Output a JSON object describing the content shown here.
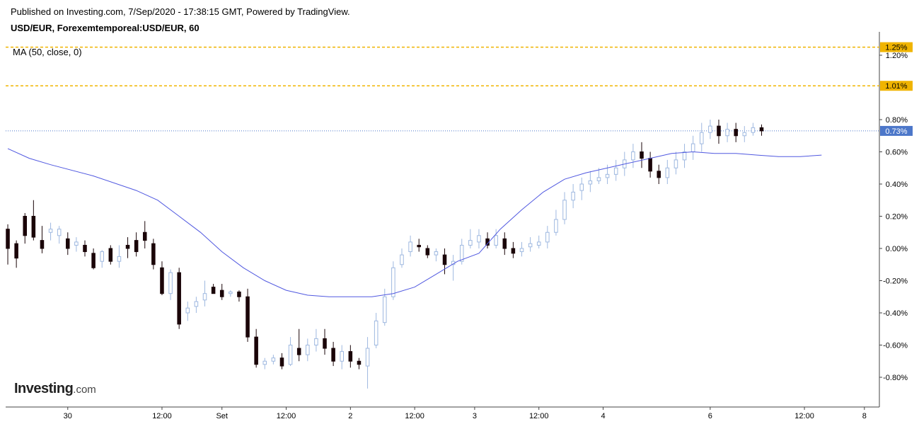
{
  "header": {
    "published": "Published on Investing.com, 7/Sep/2020 - 17:38:15 GMT, Powered by TradingView.",
    "symbol": "USD/EUR, Forexemtemporeal:USD/EUR, 60",
    "indicator": "MA (50, close, 0)"
  },
  "logo": {
    "brand": "Investing",
    "suffix": ".com"
  },
  "colors": {
    "up_fill": "#ffffff",
    "up_stroke": "#9eb8e0",
    "down_fill": "#1a0508",
    "ma_line": "#5058e0",
    "dashed_line": "#f0b400",
    "current_price": "#4c77c9",
    "axis": "#444444",
    "text": "#000000"
  },
  "chart_data": {
    "type": "candlestick",
    "ylabel": "",
    "ylim": [
      -0.9,
      1.3
    ],
    "y_ticks": [
      {
        "value": 1.2,
        "label": "1.20%"
      },
      {
        "value": 0.8,
        "label": "0.80%"
      },
      {
        "value": 0.6,
        "label": "0.60%"
      },
      {
        "value": 0.4,
        "label": "0.40%"
      },
      {
        "value": 0.2,
        "label": "0.20%"
      },
      {
        "value": 0.0,
        "label": "0.00%"
      },
      {
        "value": -0.2,
        "label": "-0.20%"
      },
      {
        "value": -0.4,
        "label": "-0.40%"
      },
      {
        "value": -0.6,
        "label": "-0.60%"
      },
      {
        "value": -0.8,
        "label": "-0.80%"
      }
    ],
    "x_ticks": [
      {
        "index": 14,
        "label": "30"
      },
      {
        "index": 36,
        "label": "12:00"
      },
      {
        "index": 50,
        "label": "Set"
      },
      {
        "index": 65,
        "label": "12:00"
      },
      {
        "index": 80,
        "label": "2"
      },
      {
        "index": 95,
        "label": "12:00"
      },
      {
        "index": 109,
        "label": "3"
      },
      {
        "index": 124,
        "label": "12:00"
      },
      {
        "index": 139,
        "label": "4"
      },
      {
        "index": 164,
        "label": "6"
      },
      {
        "index": 186,
        "label": "12:00"
      },
      {
        "index": 200,
        "label": "8"
      }
    ],
    "x_count": 204,
    "horizontal_lines": [
      {
        "value": 1.25,
        "label": "1.25%",
        "style": "dashed"
      },
      {
        "value": 1.01,
        "label": "1.01%",
        "style": "dashed"
      },
      {
        "value": 0.73,
        "label": "0.73%",
        "style": "dotted-current"
      }
    ],
    "ma_series": {
      "name": "MA (50, close, 0)",
      "points": [
        [
          0,
          0.62
        ],
        [
          5,
          0.56
        ],
        [
          10,
          0.52
        ],
        [
          20,
          0.45
        ],
        [
          30,
          0.36
        ],
        [
          35,
          0.3
        ],
        [
          40,
          0.2
        ],
        [
          45,
          0.1
        ],
        [
          50,
          -0.02
        ],
        [
          55,
          -0.12
        ],
        [
          60,
          -0.2
        ],
        [
          65,
          -0.26
        ],
        [
          70,
          -0.29
        ],
        [
          75,
          -0.3
        ],
        [
          80,
          -0.3
        ],
        [
          85,
          -0.3
        ],
        [
          90,
          -0.28
        ],
        [
          95,
          -0.24
        ],
        [
          100,
          -0.16
        ],
        [
          105,
          -0.08
        ],
        [
          110,
          -0.03
        ],
        [
          115,
          0.12
        ],
        [
          120,
          0.24
        ],
        [
          125,
          0.35
        ],
        [
          130,
          0.43
        ],
        [
          135,
          0.47
        ],
        [
          140,
          0.5
        ],
        [
          145,
          0.53
        ],
        [
          150,
          0.56
        ],
        [
          155,
          0.59
        ],
        [
          160,
          0.6
        ],
        [
          165,
          0.59
        ],
        [
          170,
          0.59
        ],
        [
          175,
          0.58
        ],
        [
          180,
          0.57
        ],
        [
          185,
          0.57
        ],
        [
          190,
          0.58
        ]
      ]
    },
    "candles": [
      [
        0,
        0.12,
        0.0,
        0.15,
        -0.1
      ],
      [
        2,
        0.03,
        -0.06,
        0.05,
        -0.12
      ],
      [
        4,
        0.2,
        0.08,
        0.22,
        0.03
      ],
      [
        6,
        0.2,
        0.07,
        0.3,
        0.05
      ],
      [
        8,
        0.05,
        0.0,
        0.14,
        -0.03
      ],
      [
        10,
        0.1,
        0.12,
        0.16,
        0.05
      ],
      [
        12,
        0.08,
        0.12,
        0.14,
        0.03
      ],
      [
        14,
        0.06,
        0.0,
        0.1,
        -0.04
      ],
      [
        16,
        0.02,
        0.04,
        0.07,
        -0.02
      ],
      [
        18,
        0.02,
        -0.02,
        0.05,
        -0.05
      ],
      [
        20,
        -0.03,
        -0.12,
        0.0,
        -0.13
      ],
      [
        22,
        -0.08,
        -0.02,
        -0.01,
        -0.12
      ],
      [
        24,
        0.0,
        -0.08,
        0.02,
        -0.1
      ],
      [
        26,
        -0.08,
        -0.05,
        0.02,
        -0.12
      ],
      [
        28,
        0.02,
        0.0,
        0.07,
        -0.06
      ],
      [
        30,
        0.05,
        -0.02,
        0.1,
        -0.05
      ],
      [
        32,
        0.1,
        0.05,
        0.17,
        0.0
      ],
      [
        34,
        0.03,
        -0.1,
        0.06,
        -0.13
      ],
      [
        36,
        -0.12,
        -0.28,
        -0.08,
        -0.29
      ],
      [
        38,
        -0.28,
        -0.15,
        -0.13,
        -0.32
      ],
      [
        40,
        -0.15,
        -0.47,
        -0.12,
        -0.5
      ],
      [
        42,
        -0.4,
        -0.37,
        -0.33,
        -0.45
      ],
      [
        44,
        -0.36,
        -0.33,
        -0.3,
        -0.4
      ],
      [
        46,
        -0.32,
        -0.28,
        -0.2,
        -0.36
      ],
      [
        48,
        -0.24,
        -0.28,
        -0.22,
        -0.28
      ],
      [
        50,
        -0.26,
        -0.3,
        -0.22,
        -0.32
      ],
      [
        52,
        -0.28,
        -0.27,
        -0.26,
        -0.3
      ],
      [
        54,
        -0.27,
        -0.3,
        -0.26,
        -0.33
      ],
      [
        56,
        -0.3,
        -0.55,
        -0.25,
        -0.58
      ],
      [
        58,
        -0.55,
        -0.72,
        -0.5,
        -0.74
      ],
      [
        60,
        -0.72,
        -0.7,
        -0.68,
        -0.75
      ],
      [
        62,
        -0.7,
        -0.68,
        -0.66,
        -0.72
      ],
      [
        64,
        -0.68,
        -0.73,
        -0.65,
        -0.75
      ],
      [
        66,
        -0.72,
        -0.6,
        -0.55,
        -0.73
      ],
      [
        68,
        -0.62,
        -0.66,
        -0.5,
        -0.7
      ],
      [
        70,
        -0.66,
        -0.6,
        -0.56,
        -0.7
      ],
      [
        72,
        -0.6,
        -0.56,
        -0.5,
        -0.64
      ],
      [
        74,
        -0.56,
        -0.62,
        -0.5,
        -0.66
      ],
      [
        76,
        -0.62,
        -0.7,
        -0.58,
        -0.73
      ],
      [
        78,
        -0.7,
        -0.64,
        -0.6,
        -0.75
      ],
      [
        80,
        -0.64,
        -0.7,
        -0.6,
        -0.74
      ],
      [
        82,
        -0.7,
        -0.72,
        -0.68,
        -0.75
      ],
      [
        84,
        -0.73,
        -0.62,
        -0.55,
        -0.87
      ],
      [
        86,
        -0.6,
        -0.45,
        -0.4,
        -0.62
      ],
      [
        88,
        -0.46,
        -0.3,
        -0.25,
        -0.48
      ],
      [
        90,
        -0.3,
        -0.12,
        -0.08,
        -0.32
      ],
      [
        92,
        -0.1,
        -0.04,
        0.0,
        -0.12
      ],
      [
        94,
        -0.02,
        0.04,
        0.08,
        -0.05
      ],
      [
        96,
        0.02,
        0.01,
        0.06,
        -0.02
      ],
      [
        98,
        0.0,
        -0.04,
        0.02,
        -0.06
      ],
      [
        100,
        -0.04,
        -0.02,
        0.0,
        -0.08
      ],
      [
        102,
        -0.04,
        -0.1,
        0.0,
        -0.16
      ],
      [
        104,
        -0.1,
        -0.08,
        -0.04,
        -0.2
      ],
      [
        106,
        -0.08,
        0.02,
        0.06,
        -0.1
      ],
      [
        108,
        0.02,
        0.05,
        0.12,
        0.0
      ],
      [
        110,
        0.04,
        0.08,
        0.12,
        0.0
      ],
      [
        112,
        0.06,
        0.02,
        0.1,
        0.0
      ],
      [
        114,
        0.02,
        0.08,
        0.12,
        0.0
      ],
      [
        116,
        0.06,
        0.0,
        0.1,
        -0.04
      ],
      [
        118,
        0.0,
        -0.03,
        0.04,
        -0.06
      ],
      [
        120,
        -0.02,
        0.0,
        0.04,
        -0.05
      ],
      [
        122,
        0.01,
        0.03,
        0.07,
        -0.02
      ],
      [
        124,
        0.02,
        0.04,
        0.08,
        0.0
      ],
      [
        126,
        0.04,
        0.1,
        0.14,
        0.0
      ],
      [
        128,
        0.1,
        0.18,
        0.24,
        0.08
      ],
      [
        130,
        0.18,
        0.3,
        0.35,
        0.15
      ],
      [
        132,
        0.3,
        0.35,
        0.4,
        0.25
      ],
      [
        134,
        0.36,
        0.4,
        0.44,
        0.3
      ],
      [
        136,
        0.4,
        0.42,
        0.48,
        0.35
      ],
      [
        138,
        0.42,
        0.44,
        0.5,
        0.4
      ],
      [
        140,
        0.44,
        0.46,
        0.52,
        0.4
      ],
      [
        142,
        0.46,
        0.5,
        0.55,
        0.42
      ],
      [
        144,
        0.5,
        0.55,
        0.6,
        0.45
      ],
      [
        146,
        0.55,
        0.6,
        0.65,
        0.5
      ],
      [
        148,
        0.6,
        0.56,
        0.66,
        0.5
      ],
      [
        150,
        0.56,
        0.48,
        0.6,
        0.44
      ],
      [
        152,
        0.48,
        0.44,
        0.52,
        0.4
      ],
      [
        154,
        0.44,
        0.5,
        0.55,
        0.4
      ],
      [
        156,
        0.5,
        0.55,
        0.6,
        0.46
      ],
      [
        158,
        0.55,
        0.6,
        0.65,
        0.5
      ],
      [
        160,
        0.6,
        0.65,
        0.7,
        0.55
      ],
      [
        162,
        0.65,
        0.72,
        0.78,
        0.6
      ],
      [
        164,
        0.72,
        0.76,
        0.8,
        0.68
      ],
      [
        166,
        0.76,
        0.7,
        0.8,
        0.65
      ],
      [
        168,
        0.7,
        0.74,
        0.78,
        0.66
      ],
      [
        170,
        0.74,
        0.7,
        0.78,
        0.66
      ],
      [
        172,
        0.7,
        0.72,
        0.76,
        0.66
      ],
      [
        174,
        0.72,
        0.75,
        0.78,
        0.7
      ],
      [
        176,
        0.75,
        0.73,
        0.77,
        0.7
      ]
    ]
  }
}
